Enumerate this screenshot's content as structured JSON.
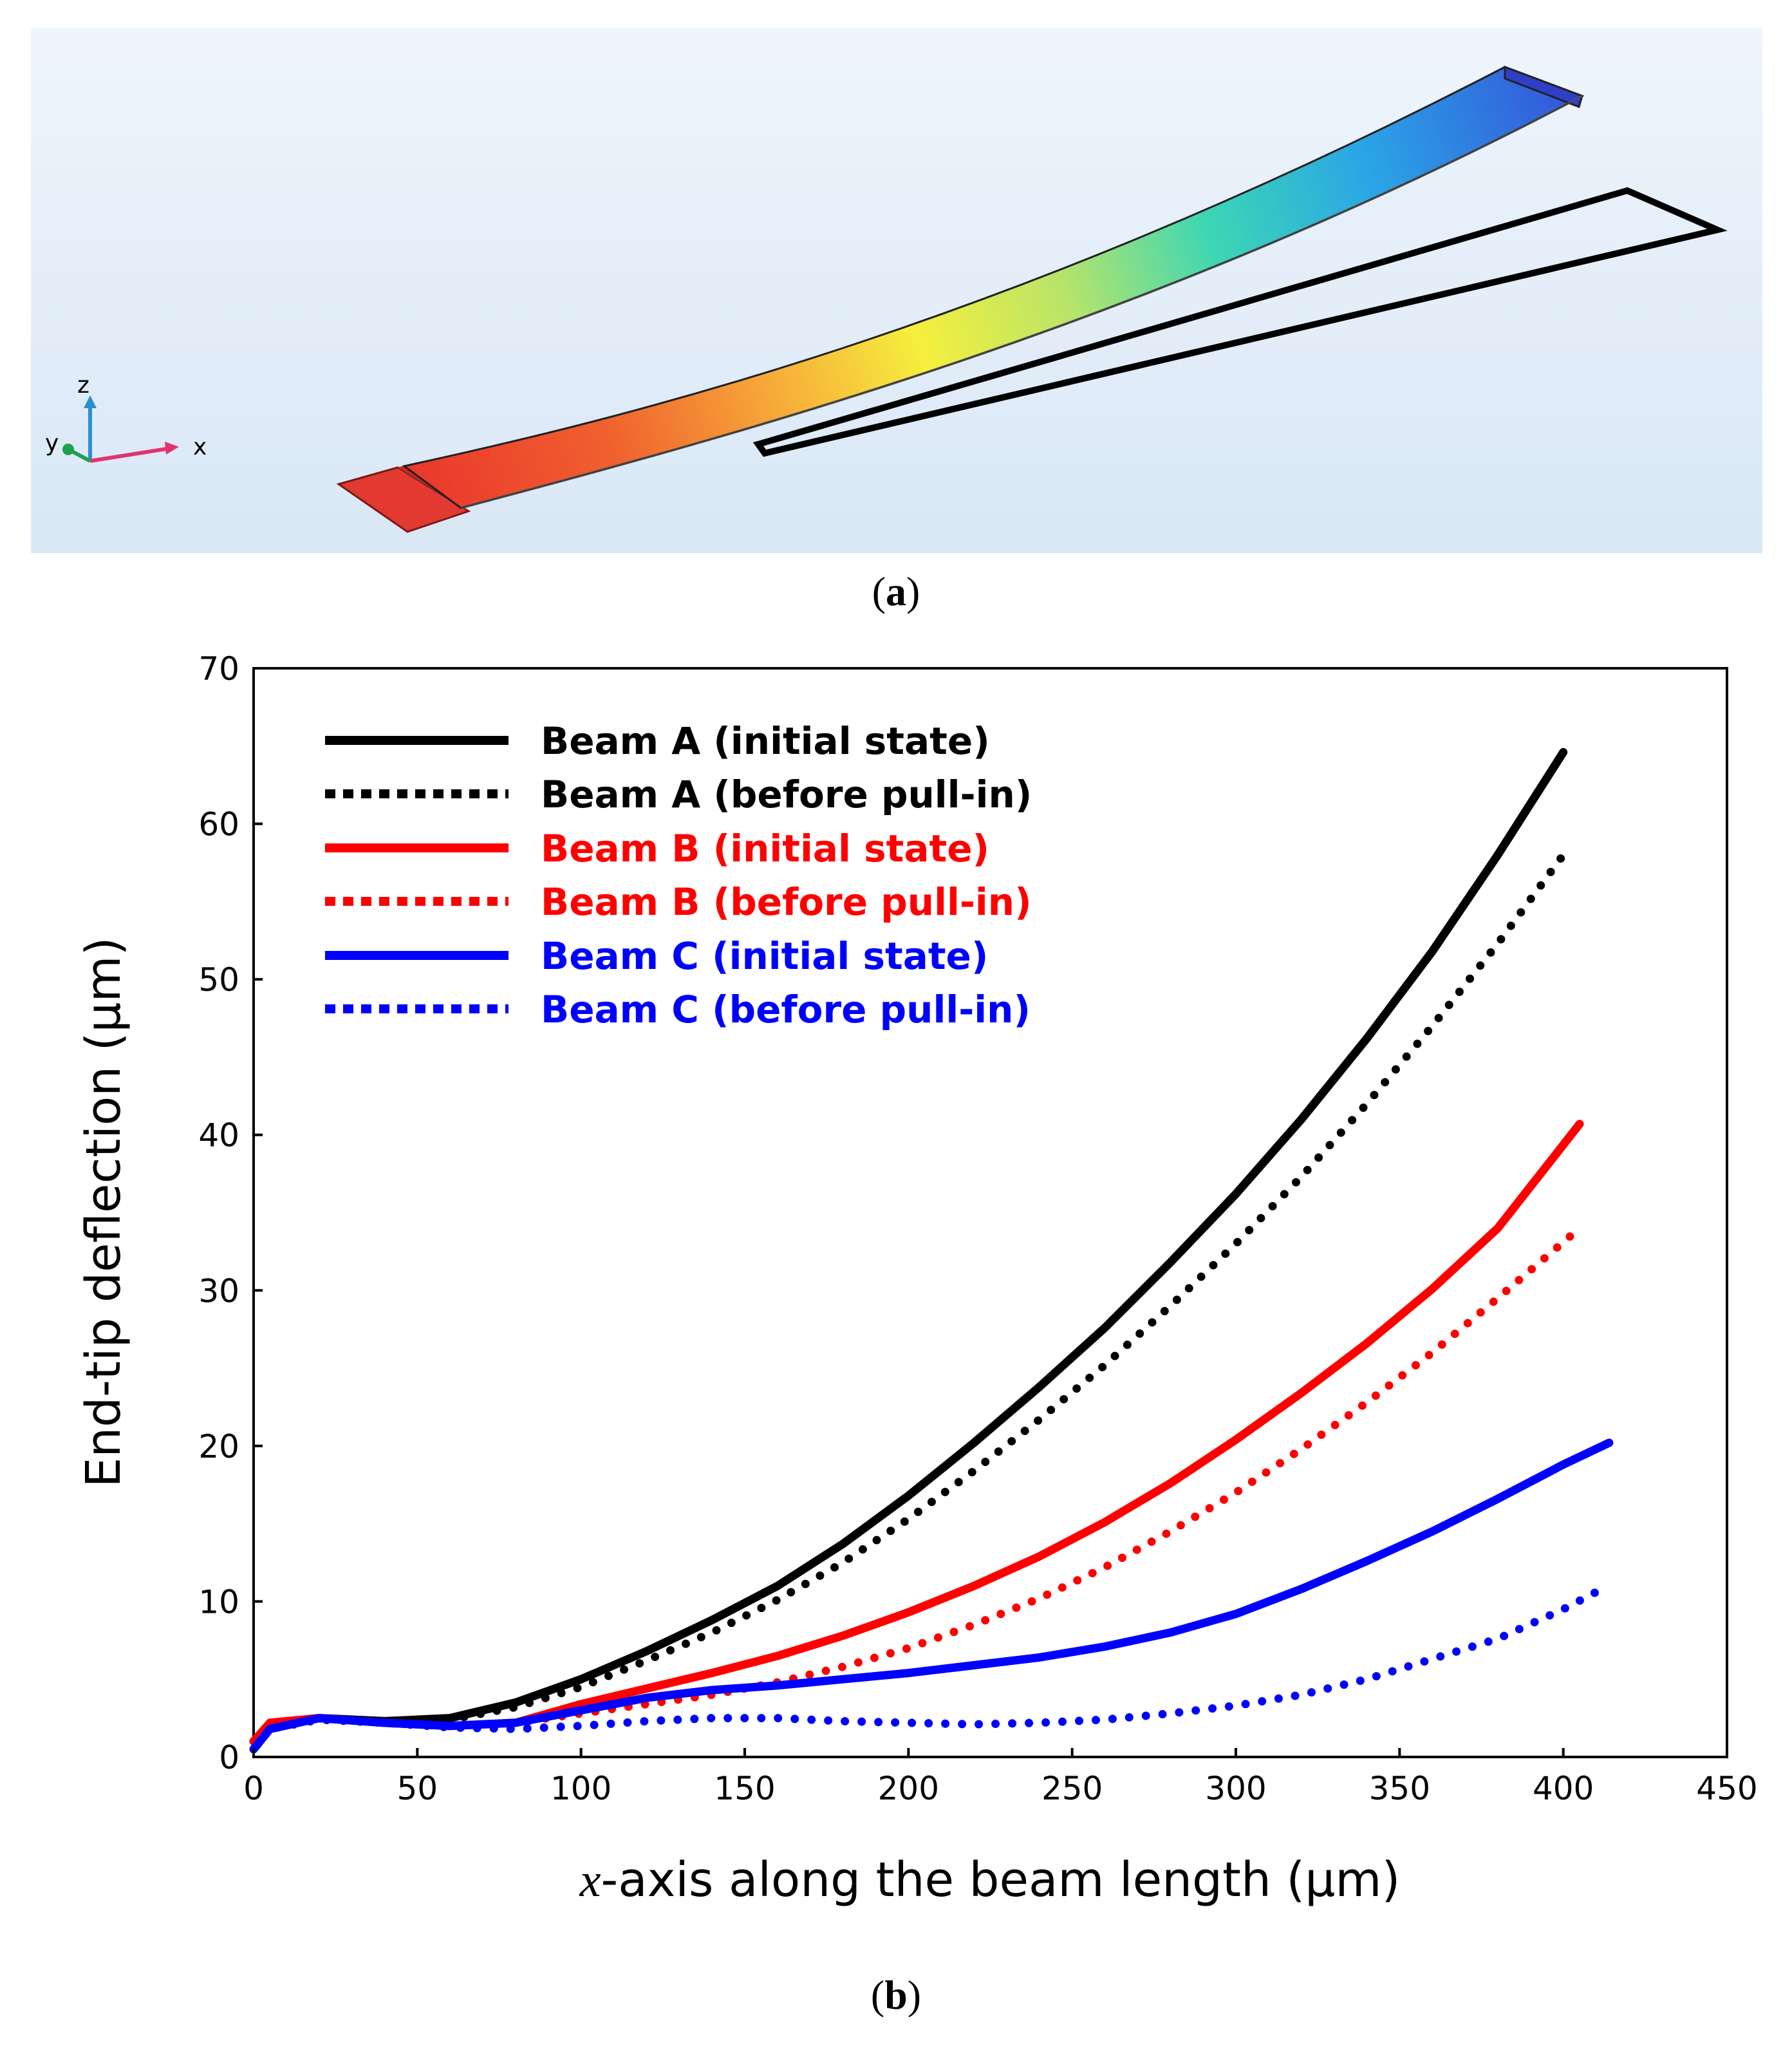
{
  "panel_a": {
    "caption": "a",
    "axes_triad": {
      "z": "z",
      "y": "y",
      "x": "x"
    },
    "colors": {
      "background_top": "#e9f2fb",
      "background_bottom": "#dce9f7"
    }
  },
  "panel_b": {
    "caption": "b",
    "xlabel_var": "x",
    "xlabel_rest": "-axis along the beam length (µm)",
    "ylabel": "End-tip deflection (µm)"
  },
  "chart_data": {
    "type": "line",
    "title": "",
    "xlabel": "x-axis along the beam length (µm)",
    "ylabel": "End-tip deflection (µm)",
    "xlim": [
      0,
      450
    ],
    "ylim": [
      0,
      70
    ],
    "xticks": [
      0,
      50,
      100,
      150,
      200,
      250,
      300,
      350,
      400,
      450
    ],
    "yticks": [
      0,
      10,
      20,
      30,
      40,
      50,
      60,
      70
    ],
    "legend_position": "top-left",
    "series": [
      {
        "name": "Beam A (initial state)",
        "color": "#000000",
        "style": "solid",
        "x": [
          0,
          5,
          20,
          40,
          60,
          80,
          100,
          120,
          140,
          160,
          180,
          200,
          220,
          240,
          260,
          280,
          300,
          320,
          340,
          360,
          380,
          400
        ],
        "y": [
          1.0,
          2.0,
          2.5,
          2.3,
          2.5,
          3.5,
          5.0,
          6.8,
          8.8,
          11.0,
          13.7,
          16.8,
          20.2,
          23.8,
          27.6,
          31.8,
          36.2,
          41.0,
          46.2,
          51.8,
          58.0,
          64.6
        ]
      },
      {
        "name": "Beam A (before pull-in)",
        "color": "#000000",
        "style": "dotted",
        "x": [
          0,
          5,
          20,
          40,
          60,
          80,
          100,
          120,
          140,
          160,
          180,
          200,
          220,
          240,
          260,
          280,
          300,
          320,
          340,
          360,
          380,
          400
        ],
        "y": [
          1.0,
          2.0,
          2.5,
          2.3,
          2.4,
          3.2,
          4.5,
          6.2,
          8.0,
          10.1,
          12.5,
          15.3,
          18.4,
          21.7,
          25.2,
          29.0,
          33.0,
          37.3,
          42.0,
          47.0,
          52.3,
          58.0
        ]
      },
      {
        "name": "Beam B (initial state)",
        "color": "#ff0000",
        "style": "solid",
        "x": [
          0,
          5,
          20,
          40,
          60,
          80,
          100,
          120,
          140,
          160,
          180,
          200,
          220,
          240,
          260,
          280,
          300,
          320,
          340,
          360,
          380,
          405
        ],
        "y": [
          1.0,
          2.2,
          2.5,
          2.2,
          2.0,
          2.2,
          3.4,
          4.4,
          5.4,
          6.5,
          7.8,
          9.3,
          11.0,
          12.9,
          15.1,
          17.6,
          20.4,
          23.4,
          26.6,
          30.1,
          34.0,
          40.7
        ]
      },
      {
        "name": "Beam B (before pull-in)",
        "color": "#ff0000",
        "style": "dotted",
        "x": [
          0,
          5,
          20,
          40,
          60,
          80,
          100,
          120,
          140,
          160,
          180,
          200,
          220,
          240,
          260,
          280,
          300,
          320,
          340,
          360,
          380,
          405
        ],
        "y": [
          1.0,
          2.2,
          2.5,
          2.2,
          2.0,
          2.2,
          2.8,
          3.4,
          4.0,
          4.8,
          5.8,
          7.0,
          8.5,
          10.2,
          12.2,
          14.5,
          17.0,
          19.8,
          22.8,
          26.0,
          29.5,
          34.0
        ]
      },
      {
        "name": "Beam C (initial state)",
        "color": "#0000ff",
        "style": "solid",
        "x": [
          0,
          5,
          20,
          40,
          60,
          80,
          100,
          120,
          140,
          160,
          180,
          200,
          220,
          240,
          260,
          280,
          300,
          320,
          340,
          360,
          380,
          400,
          414
        ],
        "y": [
          0.5,
          1.8,
          2.5,
          2.2,
          2.0,
          2.2,
          3.0,
          3.8,
          4.3,
          4.6,
          5.0,
          5.4,
          5.9,
          6.4,
          7.1,
          8.0,
          9.2,
          10.8,
          12.6,
          14.5,
          16.6,
          18.8,
          20.2
        ]
      },
      {
        "name": "Beam C (before pull-in)",
        "color": "#0000ff",
        "style": "dotted",
        "x": [
          0,
          5,
          20,
          40,
          60,
          80,
          100,
          120,
          140,
          160,
          180,
          200,
          220,
          240,
          260,
          280,
          300,
          320,
          340,
          360,
          380,
          400,
          410
        ],
        "y": [
          0.5,
          1.8,
          2.4,
          2.2,
          1.9,
          1.8,
          2.0,
          2.3,
          2.5,
          2.5,
          2.3,
          2.2,
          2.1,
          2.2,
          2.4,
          2.8,
          3.3,
          4.0,
          5.0,
          6.3,
          7.6,
          9.5,
          10.6
        ]
      }
    ]
  }
}
